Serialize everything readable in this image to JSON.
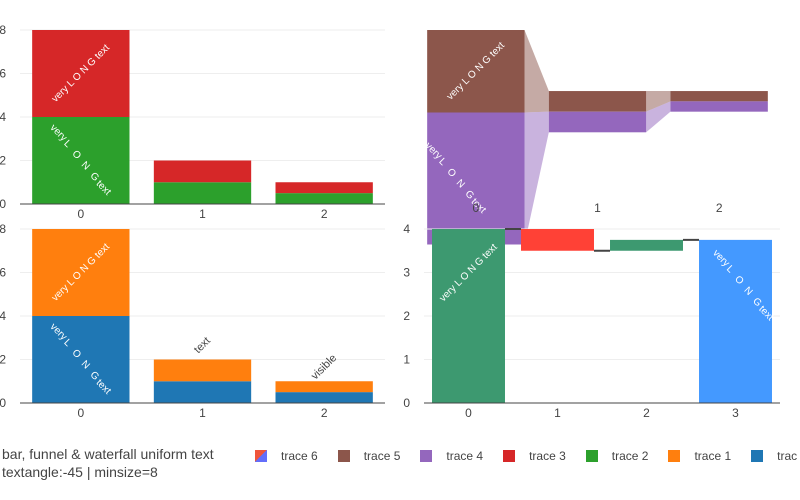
{
  "legend": {
    "title_line1": "bar, funnel & waterfall uniform text",
    "title_line2": "textangle:-45 | minsize=8",
    "items": [
      {
        "name": "trace 6",
        "color": "#ef553b",
        "color2": "#636efa"
      },
      {
        "name": "trace 5",
        "color": "#8c564b"
      },
      {
        "name": "trace 4",
        "color": "#9467bd"
      },
      {
        "name": "trace 3",
        "color": "#d62728"
      },
      {
        "name": "trace 2",
        "color": "#2ca02c"
      },
      {
        "name": "trace 1",
        "color": "#ff7f0e"
      },
      {
        "name": "trac",
        "color": "#1f77b4"
      }
    ]
  },
  "chart_data": [
    {
      "type": "bar",
      "barmode": "stack",
      "categories": [
        "0",
        "1",
        "2"
      ],
      "ylim": [
        0,
        8
      ],
      "yticks": [
        0,
        2,
        4,
        6,
        8
      ],
      "series": [
        {
          "name": "trace 2",
          "color": "#2ca02c",
          "values": [
            4,
            1,
            0.5
          ],
          "text": [
            "very L O N G text",
            "",
            ""
          ],
          "textposition": "inside"
        },
        {
          "name": "trace 3",
          "color": "#d62728",
          "values": [
            4,
            1,
            0.5
          ],
          "text": [
            "very L O N G text",
            "",
            ""
          ],
          "textposition": "inside"
        }
      ]
    },
    {
      "type": "funnel",
      "categories": [
        "0",
        "1",
        "2"
      ],
      "xlim": [
        0,
        8
      ],
      "series": [
        {
          "name": "trace 4",
          "color": "#9467bd",
          "values": [
            4,
            1,
            0.5
          ],
          "text": [
            "very L O N G text",
            "",
            ""
          ]
        },
        {
          "name": "trace 5",
          "color": "#8c564b",
          "values": [
            4,
            1,
            0.5
          ],
          "text": [
            "very L O N G text",
            "",
            ""
          ]
        }
      ]
    },
    {
      "type": "bar",
      "barmode": "stack",
      "categories": [
        "0",
        "1",
        "2"
      ],
      "ylim": [
        0,
        8
      ],
      "yticks": [
        0,
        2,
        4,
        6,
        8
      ],
      "series": [
        {
          "name": "trac",
          "color": "#1f77b4",
          "values": [
            4,
            1,
            0.5
          ],
          "text": [
            "very L O N G text",
            "",
            ""
          ],
          "textposition": "inside"
        },
        {
          "name": "trace 1",
          "color": "#ff7f0e",
          "values": [
            4,
            1,
            0.5
          ],
          "text": [
            "very L O N G text",
            "text",
            "visible"
          ],
          "textposition": "auto"
        }
      ]
    },
    {
      "type": "waterfall",
      "name": "trace 6",
      "categories": [
        "0",
        "1",
        "2",
        "3"
      ],
      "ylim": [
        0,
        4
      ],
      "yticks": [
        0,
        1,
        2,
        3,
        4
      ],
      "increasing_color": "#3d9970",
      "decreasing_color": "#ff4136",
      "totals_color": "#4499ff",
      "bars": [
        {
          "x": "0",
          "kind": "increasing",
          "value": 4,
          "text": "very L O N G text"
        },
        {
          "x": "1",
          "kind": "decreasing",
          "value": -0.5,
          "text": ""
        },
        {
          "x": "2",
          "kind": "increasing",
          "value": 0.25,
          "text": ""
        },
        {
          "x": "3",
          "kind": "total",
          "value": 3.75,
          "text": "very L O N G text"
        }
      ]
    }
  ]
}
